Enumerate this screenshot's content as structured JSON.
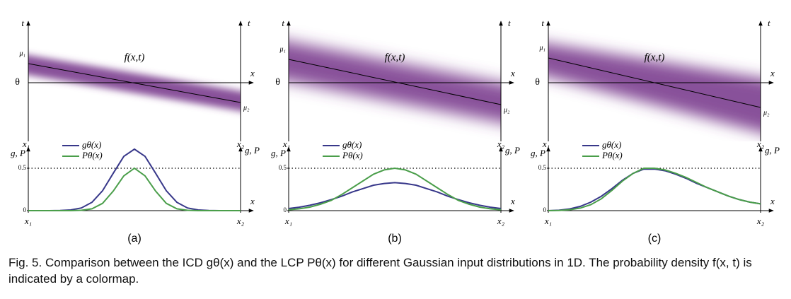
{
  "chart_data": [
    {
      "type": "line",
      "panel_label": "(a)",
      "density": {
        "title": "f(x,t)",
        "y_label": "t",
        "x_label": "x",
        "origin_label": "θ",
        "start_label": "μ₁",
        "end_label": "μ₂",
        "x_start_label": "x₁",
        "x_end_label": "x₂"
      },
      "y_label": "g, P",
      "x_label": "x",
      "xlim": [
        0,
        1
      ],
      "xticks": [
        {
          "value": 0,
          "label": "x₁"
        },
        {
          "value": 1,
          "label": "x₂"
        }
      ],
      "ylim": [
        0,
        0.75
      ],
      "yticks": [
        0,
        0.5
      ],
      "x": [
        0,
        0.05,
        0.1,
        0.15,
        0.2,
        0.25,
        0.3,
        0.35,
        0.4,
        0.45,
        0.5,
        0.55,
        0.6,
        0.65,
        0.7,
        0.75,
        0.8,
        0.85,
        0.9,
        0.95,
        1
      ],
      "series": [
        {
          "name": "gθ(x)",
          "color": "#38388a",
          "values": [
            0,
            0,
            0,
            0.002,
            0.008,
            0.032,
            0.098,
            0.235,
            0.44,
            0.64,
            0.725,
            0.64,
            0.44,
            0.235,
            0.098,
            0.032,
            0.008,
            0.002,
            0,
            0,
            0
          ]
        },
        {
          "name": "Pθ(x)",
          "color": "#4a9e4a",
          "values": [
            0,
            0,
            0,
            0,
            0,
            0.004,
            0.022,
            0.086,
            0.23,
            0.41,
            0.5,
            0.41,
            0.23,
            0.086,
            0.022,
            0.004,
            0,
            0,
            0,
            0,
            0
          ]
        }
      ]
    },
    {
      "type": "line",
      "panel_label": "(b)",
      "density": {
        "title": "f(x,t)",
        "y_label": "t",
        "x_label": "x",
        "origin_label": "θ",
        "start_label": "μ₁",
        "end_label": "μ₂",
        "x_start_label": "x₁",
        "x_end_label": "x₂"
      },
      "y_label": "g, P",
      "x_label": "x",
      "xlim": [
        0,
        1
      ],
      "xticks": [
        {
          "value": 0,
          "label": "x₁"
        },
        {
          "value": 1,
          "label": "x₂"
        }
      ],
      "ylim": [
        0,
        0.75
      ],
      "yticks": [
        0,
        0.5
      ],
      "x": [
        0,
        0.05,
        0.1,
        0.15,
        0.2,
        0.25,
        0.3,
        0.35,
        0.4,
        0.45,
        0.5,
        0.55,
        0.6,
        0.65,
        0.7,
        0.75,
        0.8,
        0.85,
        0.9,
        0.95,
        1
      ],
      "series": [
        {
          "name": "gθ(x)",
          "color": "#38388a",
          "values": [
            0.025,
            0.041,
            0.063,
            0.093,
            0.13,
            0.17,
            0.22,
            0.26,
            0.3,
            0.32,
            0.33,
            0.32,
            0.3,
            0.26,
            0.22,
            0.17,
            0.13,
            0.093,
            0.063,
            0.041,
            0.025
          ]
        },
        {
          "name": "Pθ(x)",
          "color": "#4a9e4a",
          "values": [
            0.01,
            0.022,
            0.042,
            0.076,
            0.12,
            0.19,
            0.27,
            0.35,
            0.43,
            0.48,
            0.5,
            0.48,
            0.43,
            0.35,
            0.27,
            0.19,
            0.12,
            0.076,
            0.042,
            0.022,
            0.01
          ]
        }
      ]
    },
    {
      "type": "line",
      "panel_label": "(c)",
      "density": {
        "title": "f(x,t)",
        "y_label": "t",
        "x_label": "x",
        "origin_label": "θ",
        "start_label": "μ₁",
        "end_label": "μ₂",
        "x_start_label": "x₁",
        "x_end_label": "x₂"
      },
      "y_label": "g, P",
      "x_label": "x",
      "xlim": [
        0,
        1
      ],
      "xticks": [
        {
          "value": 0,
          "label": "x₁"
        },
        {
          "value": 1,
          "label": "x₂"
        }
      ],
      "ylim": [
        0,
        0.75
      ],
      "yticks": [
        0,
        0.5
      ],
      "x": [
        0,
        0.05,
        0.1,
        0.15,
        0.2,
        0.25,
        0.3,
        0.35,
        0.4,
        0.45,
        0.5,
        0.55,
        0.6,
        0.65,
        0.7,
        0.75,
        0.8,
        0.85,
        0.9,
        0.95,
        1
      ],
      "series": [
        {
          "name": "gθ(x)",
          "color": "#38388a",
          "values": [
            0,
            0.005,
            0.02,
            0.05,
            0.1,
            0.17,
            0.26,
            0.36,
            0.44,
            0.49,
            0.49,
            0.47,
            0.43,
            0.38,
            0.32,
            0.27,
            0.22,
            0.17,
            0.13,
            0.1,
            0.08
          ]
        },
        {
          "name": "Pθ(x)",
          "color": "#4a9e4a",
          "values": [
            0,
            0.002,
            0.01,
            0.03,
            0.07,
            0.14,
            0.24,
            0.35,
            0.44,
            0.5,
            0.5,
            0.48,
            0.44,
            0.39,
            0.33,
            0.27,
            0.22,
            0.17,
            0.13,
            0.1,
            0.08
          ]
        }
      ]
    }
  ],
  "caption": "Fig. 5.  Comparison between the ICD gθ(x) and the LCP Pθ(x) for different Gaussian input distributions in 1D. The probability density f(x, t) is indicated by a colormap."
}
